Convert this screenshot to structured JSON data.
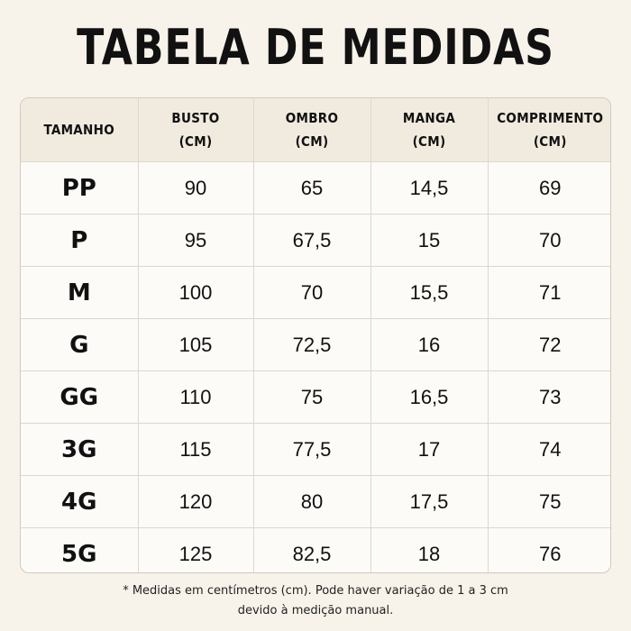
{
  "title": "TABELA DE MEDIDAS",
  "table": {
    "headers": [
      {
        "line1": "TAMANHO",
        "line2": ""
      },
      {
        "line1": "BUSTO",
        "line2": "(CM)"
      },
      {
        "line1": "OMBRO",
        "line2": "(CM)"
      },
      {
        "line1": "MANGA",
        "line2": "(CM)"
      },
      {
        "line1": "COMPRIMENTO",
        "line2": "(CM)"
      }
    ],
    "rows": [
      [
        "PP",
        "90",
        "65",
        "14,5",
        "69"
      ],
      [
        "P",
        "95",
        "67,5",
        "15",
        "70"
      ],
      [
        "M",
        "100",
        "70",
        "15,5",
        "71"
      ],
      [
        "G",
        "105",
        "72,5",
        "16",
        "72"
      ],
      [
        "GG",
        "110",
        "75",
        "16,5",
        "73"
      ],
      [
        "3G",
        "115",
        "77,5",
        "17",
        "74"
      ],
      [
        "4G",
        "120",
        "80",
        "17,5",
        "75"
      ],
      [
        "5G",
        "125",
        "82,5",
        "18",
        "76"
      ]
    ]
  },
  "footnote": {
    "line1": "* Medidas em centímetros (cm). Pode haver variação de 1 a 3 cm",
    "line2": "devido à medição manual."
  }
}
